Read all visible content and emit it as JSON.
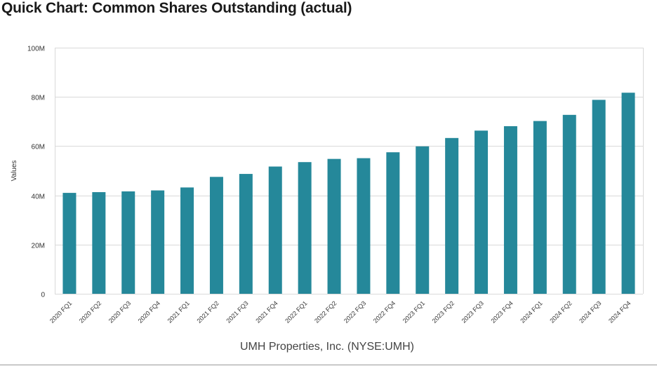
{
  "page": {
    "title": "Quick Chart: Common Shares Outstanding (actual)"
  },
  "chart_data": {
    "type": "bar",
    "title": "Quick Chart: Common Shares Outstanding (actual)",
    "subtitle": "UMH Properties, Inc. (NYSE:UMH)",
    "xlabel": "UMH Properties, Inc. (NYSE:UMH)",
    "ylabel": "Values",
    "ylim": [
      0,
      100000000
    ],
    "yticks": [
      0,
      20000000,
      40000000,
      60000000,
      80000000,
      100000000
    ],
    "ytick_labels": [
      "0",
      "20M",
      "40M",
      "60M",
      "80M",
      "100M"
    ],
    "grid": true,
    "bar_color": "#25889a",
    "categories": [
      "2020 FQ1",
      "2020 FQ2",
      "2020 FQ3",
      "2020 FQ4",
      "2021 FQ1",
      "2021 FQ2",
      "2021 FQ3",
      "2021 FQ4",
      "2022 FQ1",
      "2022 FQ2",
      "2022 FQ3",
      "2022 FQ4",
      "2023 FQ1",
      "2023 FQ2",
      "2023 FQ3",
      "2023 FQ4",
      "2024 FQ1",
      "2024 FQ2",
      "2024 FQ3",
      "2024 FQ4"
    ],
    "values": [
      41000000,
      41300000,
      41600000,
      42000000,
      43200000,
      47500000,
      48700000,
      51700000,
      53500000,
      54800000,
      55100000,
      57500000,
      59900000,
      63300000,
      66300000,
      68100000,
      70200000,
      72700000,
      78800000,
      81700000
    ]
  }
}
